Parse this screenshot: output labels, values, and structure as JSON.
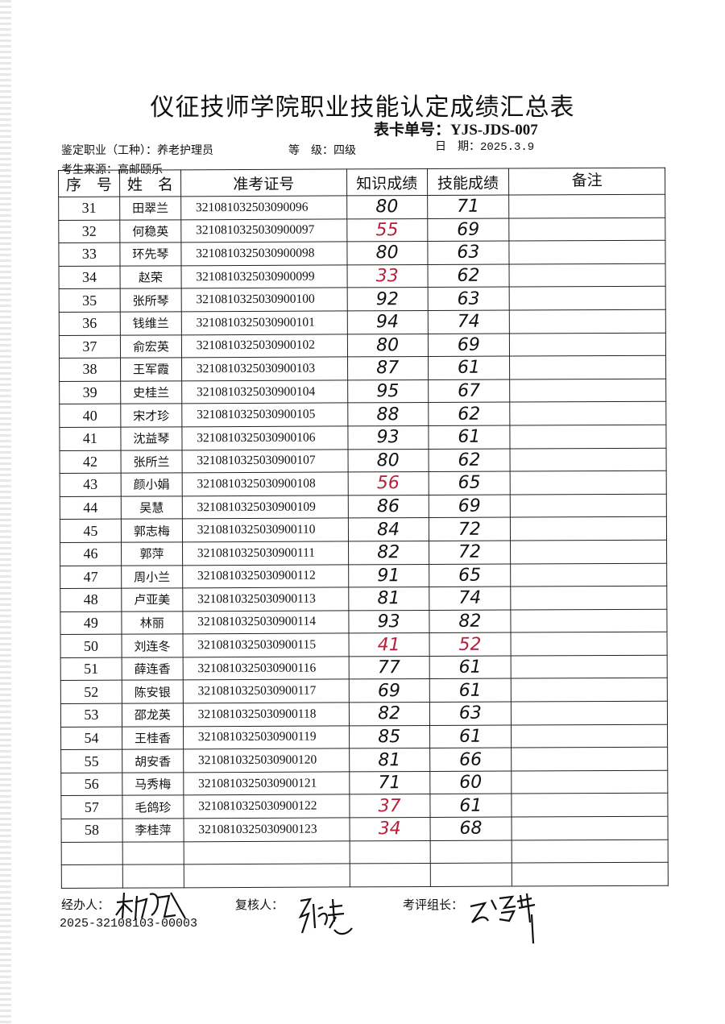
{
  "title": "仪征技师学院职业技能认定成绩汇总表",
  "form_no_label": "表卡单号：",
  "form_no": "YJS-JDS-007",
  "occupation_label": "鉴定职业（工种）：",
  "occupation": "养老护理员",
  "level_label": "等　级：",
  "level": "四级",
  "date_label": "日　期：",
  "date": "2025.3.9",
  "source_label": "考生来源：",
  "source": "高邮颐乐",
  "columns": [
    "序　号",
    "姓　名",
    "准考证号",
    "知识成绩",
    "技能成绩",
    "备注"
  ],
  "pass_color": "#111111",
  "fail_color": "#b8203a",
  "rows": [
    {
      "no": "31",
      "name": "田翠兰",
      "id": "321081032503090096",
      "knowledge": "80",
      "skill": "71",
      "k_red": false,
      "s_red": false
    },
    {
      "no": "32",
      "name": "何稳英",
      "id": "3210810325030900097",
      "knowledge": "55",
      "skill": "69",
      "k_red": true,
      "s_red": false
    },
    {
      "no": "33",
      "name": "环先琴",
      "id": "3210810325030900098",
      "knowledge": "80",
      "skill": "63",
      "k_red": false,
      "s_red": false
    },
    {
      "no": "34",
      "name": "赵荣",
      "id": "3210810325030900099",
      "knowledge": "33",
      "skill": "62",
      "k_red": true,
      "s_red": false
    },
    {
      "no": "35",
      "name": "张所琴",
      "id": "3210810325030900100",
      "knowledge": "92",
      "skill": "63",
      "k_red": false,
      "s_red": false
    },
    {
      "no": "36",
      "name": "钱维兰",
      "id": "3210810325030900101",
      "knowledge": "94",
      "skill": "74",
      "k_red": false,
      "s_red": false
    },
    {
      "no": "37",
      "name": "俞宏英",
      "id": "3210810325030900102",
      "knowledge": "80",
      "skill": "69",
      "k_red": false,
      "s_red": false
    },
    {
      "no": "38",
      "name": "王军霞",
      "id": "3210810325030900103",
      "knowledge": "87",
      "skill": "61",
      "k_red": false,
      "s_red": false
    },
    {
      "no": "39",
      "name": "史桂兰",
      "id": "3210810325030900104",
      "knowledge": "95",
      "skill": "67",
      "k_red": false,
      "s_red": false
    },
    {
      "no": "40",
      "name": "宋才珍",
      "id": "3210810325030900105",
      "knowledge": "88",
      "skill": "62",
      "k_red": false,
      "s_red": false
    },
    {
      "no": "41",
      "name": "沈益琴",
      "id": "3210810325030900106",
      "knowledge": "93",
      "skill": "61",
      "k_red": false,
      "s_red": false
    },
    {
      "no": "42",
      "name": "张所兰",
      "id": "3210810325030900107",
      "knowledge": "80",
      "skill": "62",
      "k_red": false,
      "s_red": false
    },
    {
      "no": "43",
      "name": "颜小娟",
      "id": "3210810325030900108",
      "knowledge": "56",
      "skill": "65",
      "k_red": true,
      "s_red": false
    },
    {
      "no": "44",
      "name": "吴慧",
      "id": "3210810325030900109",
      "knowledge": "86",
      "skill": "69",
      "k_red": false,
      "s_red": false
    },
    {
      "no": "45",
      "name": "郭志梅",
      "id": "3210810325030900110",
      "knowledge": "84",
      "skill": "72",
      "k_red": false,
      "s_red": false
    },
    {
      "no": "46",
      "name": "郭萍",
      "id": "3210810325030900111",
      "knowledge": "82",
      "skill": "72",
      "k_red": false,
      "s_red": false
    },
    {
      "no": "47",
      "name": "周小兰",
      "id": "3210810325030900112",
      "knowledge": "91",
      "skill": "65",
      "k_red": false,
      "s_red": false
    },
    {
      "no": "48",
      "name": "卢亚美",
      "id": "3210810325030900113",
      "knowledge": "81",
      "skill": "74",
      "k_red": false,
      "s_red": false
    },
    {
      "no": "49",
      "name": "林丽",
      "id": "3210810325030900114",
      "knowledge": "93",
      "skill": "82",
      "k_red": false,
      "s_red": false
    },
    {
      "no": "50",
      "name": "刘连冬",
      "id": "3210810325030900115",
      "knowledge": "41",
      "skill": "52",
      "k_red": true,
      "s_red": true
    },
    {
      "no": "51",
      "name": "薛连香",
      "id": "3210810325030900116",
      "knowledge": "77",
      "skill": "61",
      "k_red": false,
      "s_red": false
    },
    {
      "no": "52",
      "name": "陈安银",
      "id": "3210810325030900117",
      "knowledge": "69",
      "skill": "61",
      "k_red": false,
      "s_red": false
    },
    {
      "no": "53",
      "name": "邵龙英",
      "id": "3210810325030900118",
      "knowledge": "82",
      "skill": "63",
      "k_red": false,
      "s_red": false
    },
    {
      "no": "54",
      "name": "王桂香",
      "id": "3210810325030900119",
      "knowledge": "85",
      "skill": "61",
      "k_red": false,
      "s_red": false
    },
    {
      "no": "55",
      "name": "胡安香",
      "id": "3210810325030900120",
      "knowledge": "81",
      "skill": "66",
      "k_red": false,
      "s_red": false
    },
    {
      "no": "56",
      "name": "马秀梅",
      "id": "3210810325030900121",
      "knowledge": "71",
      "skill": "60",
      "k_red": false,
      "s_red": false
    },
    {
      "no": "57",
      "name": "毛鸽珍",
      "id": "3210810325030900122",
      "knowledge": "37",
      "skill": "61",
      "k_red": true,
      "s_red": false
    },
    {
      "no": "58",
      "name": "李桂萍",
      "id": "3210810325030900123",
      "knowledge": "34",
      "skill": "68",
      "k_red": true,
      "s_red": false
    }
  ],
  "empty_rows": 2,
  "footer": {
    "handler_label": "经办人：",
    "reviewer_label": "复核人：",
    "leader_label": "考评组长：",
    "serial": "2025-32108103-00003"
  }
}
